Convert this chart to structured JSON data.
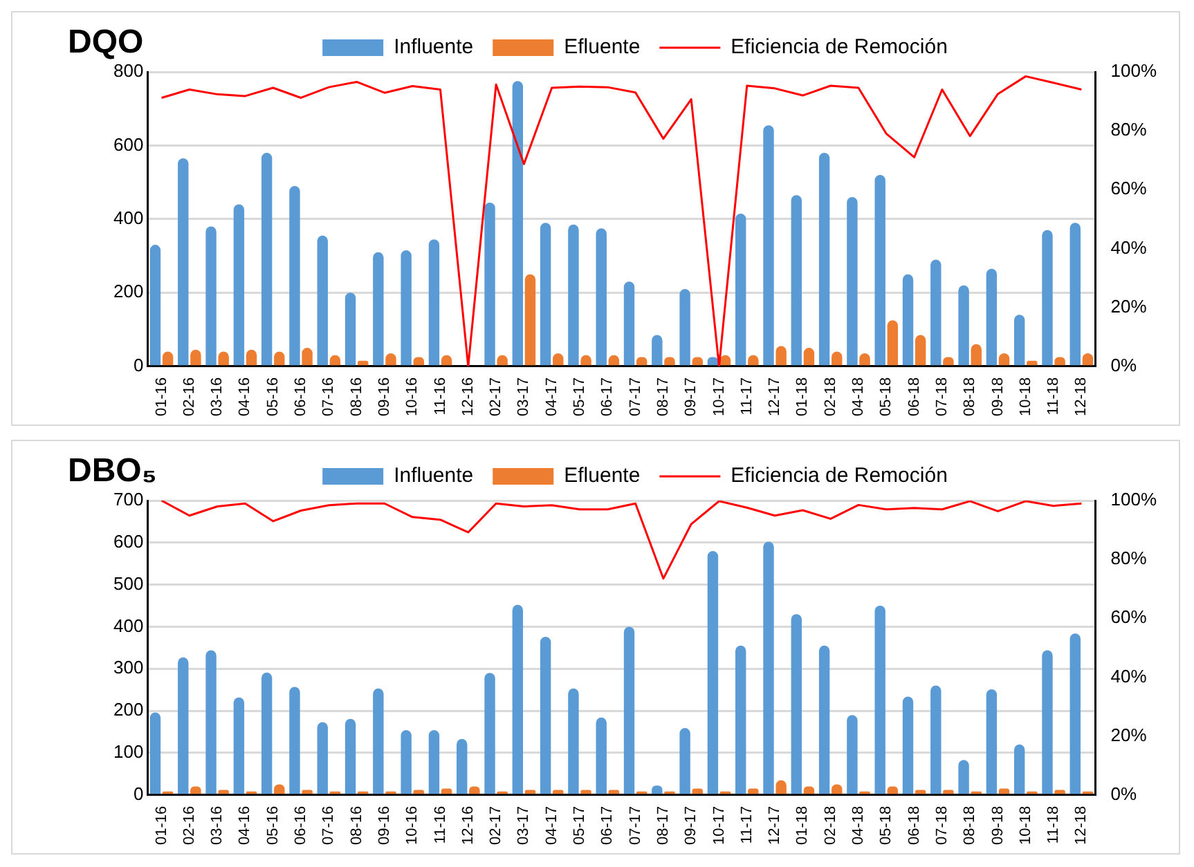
{
  "chart_data": [
    {
      "type": "bar",
      "title": "DQO",
      "categories": [
        "01-16",
        "02-16",
        "03-16",
        "04-16",
        "05-16",
        "06-16",
        "07-16",
        "08-16",
        "09-16",
        "10-16",
        "11-16",
        "12-16",
        "02-17",
        "03-17",
        "04-17",
        "05-17",
        "06-17",
        "07-17",
        "08-17",
        "09-17",
        "10-17",
        "11-17",
        "12-17",
        "01-18",
        "02-18",
        "04-18",
        "05-18",
        "06-18",
        "07-18",
        "08-18",
        "09-18",
        "10-18",
        "11-18",
        "12-18"
      ],
      "series": [
        {
          "name": "Influente",
          "color": "#5b9bd5",
          "values": [
            330,
            565,
            380,
            440,
            580,
            490,
            355,
            200,
            310,
            315,
            345,
            null,
            445,
            775,
            390,
            385,
            375,
            230,
            85,
            210,
            25,
            415,
            655,
            465,
            580,
            460,
            520,
            250,
            290,
            220,
            265,
            140,
            370,
            390
          ]
        },
        {
          "name": "Efluente",
          "color": "#ed7d31",
          "values": [
            40,
            45,
            40,
            45,
            40,
            50,
            30,
            15,
            35,
            25,
            30,
            null,
            30,
            250,
            35,
            30,
            30,
            25,
            25,
            25,
            30,
            30,
            55,
            50,
            40,
            35,
            125,
            85,
            25,
            60,
            35,
            15,
            25,
            35
          ]
        },
        {
          "name": "Eficiencia de Remoción",
          "type": "line",
          "axis": "y2",
          "color": "#ff0000",
          "values": [
            91.2,
            94,
            92.4,
            91.8,
            94.6,
            91.2,
            94.8,
            96.6,
            92.9,
            95.2,
            94,
            0,
            95.7,
            68.7,
            94.6,
            95,
            94.8,
            93,
            77.3,
            90.7,
            0,
            95.3,
            94.4,
            92,
            95.3,
            94.6,
            79,
            71,
            94,
            78.2,
            92.5,
            98.5,
            96.3,
            94
          ]
        }
      ],
      "ylim": [
        0,
        800
      ],
      "yticks": [
        0,
        200,
        400,
        600,
        800
      ],
      "y2lim": [
        0,
        100
      ],
      "y2ticks": [
        {
          "value": 0,
          "label": "0%"
        },
        {
          "value": 20,
          "label": "20%"
        },
        {
          "value": 40,
          "label": "40%"
        },
        {
          "value": 60,
          "label": "60%"
        },
        {
          "value": 80,
          "label": "80%"
        },
        {
          "value": 100,
          "label": "100%"
        }
      ],
      "grid": "y",
      "legend": "top"
    },
    {
      "type": "bar",
      "title": "DBO₅",
      "categories": [
        "01-16",
        "02-16",
        "03-16",
        "04-16",
        "05-16",
        "06-16",
        "07-16",
        "08-16",
        "09-16",
        "10-16",
        "11-16",
        "12-16",
        "02-17",
        "03-17",
        "04-17",
        "05-17",
        "06-17",
        "07-17",
        "08-17",
        "09-17",
        "10-17",
        "11-17",
        "12-17",
        "01-18",
        "02-18",
        "04-18",
        "05-18",
        "06-18",
        "07-18",
        "08-18",
        "09-18",
        "10-18",
        "11-18",
        "12-18"
      ],
      "series": [
        {
          "name": "Influente",
          "color": "#5b9bd5",
          "values": [
            196,
            327,
            344,
            232,
            291,
            257,
            173,
            181,
            253,
            154,
            154,
            133,
            290,
            452,
            376,
            253,
            184,
            400,
            22,
            159,
            580,
            355,
            602,
            430,
            355,
            190,
            450,
            234,
            260,
            83,
            251,
            120,
            344,
            384
          ]
        },
        {
          "name": "Efluente",
          "color": "#ed7d31",
          "values": [
            8,
            20,
            12,
            8,
            25,
            12,
            8,
            8,
            8,
            12,
            15,
            20,
            8,
            12,
            12,
            12,
            12,
            8,
            8,
            15,
            8,
            15,
            35,
            20,
            25,
            8,
            20,
            12,
            12,
            8,
            15,
            8,
            12,
            8
          ]
        },
        {
          "name": "Eficiencia de Remoción",
          "type": "line",
          "axis": "y2",
          "color": "#ff0000",
          "values": [
            100,
            94.9,
            98,
            99,
            93,
            96.6,
            98.4,
            99,
            99,
            94.4,
            93.5,
            89.2,
            99,
            98,
            98.4,
            97,
            97,
            99,
            73.5,
            92,
            99.8,
            97.6,
            94.9,
            96.7,
            93.8,
            98.5,
            97,
            97.5,
            97,
            99.8,
            96.4,
            99.8,
            98.2,
            99
          ]
        }
      ],
      "ylim": [
        0,
        700
      ],
      "yticks": [
        0,
        100,
        200,
        300,
        400,
        500,
        600,
        700
      ],
      "y2lim": [
        0,
        100
      ],
      "y2ticks": [
        {
          "value": 0,
          "label": "0%"
        },
        {
          "value": 20,
          "label": "20%"
        },
        {
          "value": 40,
          "label": "40%"
        },
        {
          "value": 60,
          "label": "60%"
        },
        {
          "value": 80,
          "label": "80%"
        },
        {
          "value": 100,
          "label": "100%"
        }
      ],
      "grid": "y",
      "legend": "top"
    }
  ]
}
